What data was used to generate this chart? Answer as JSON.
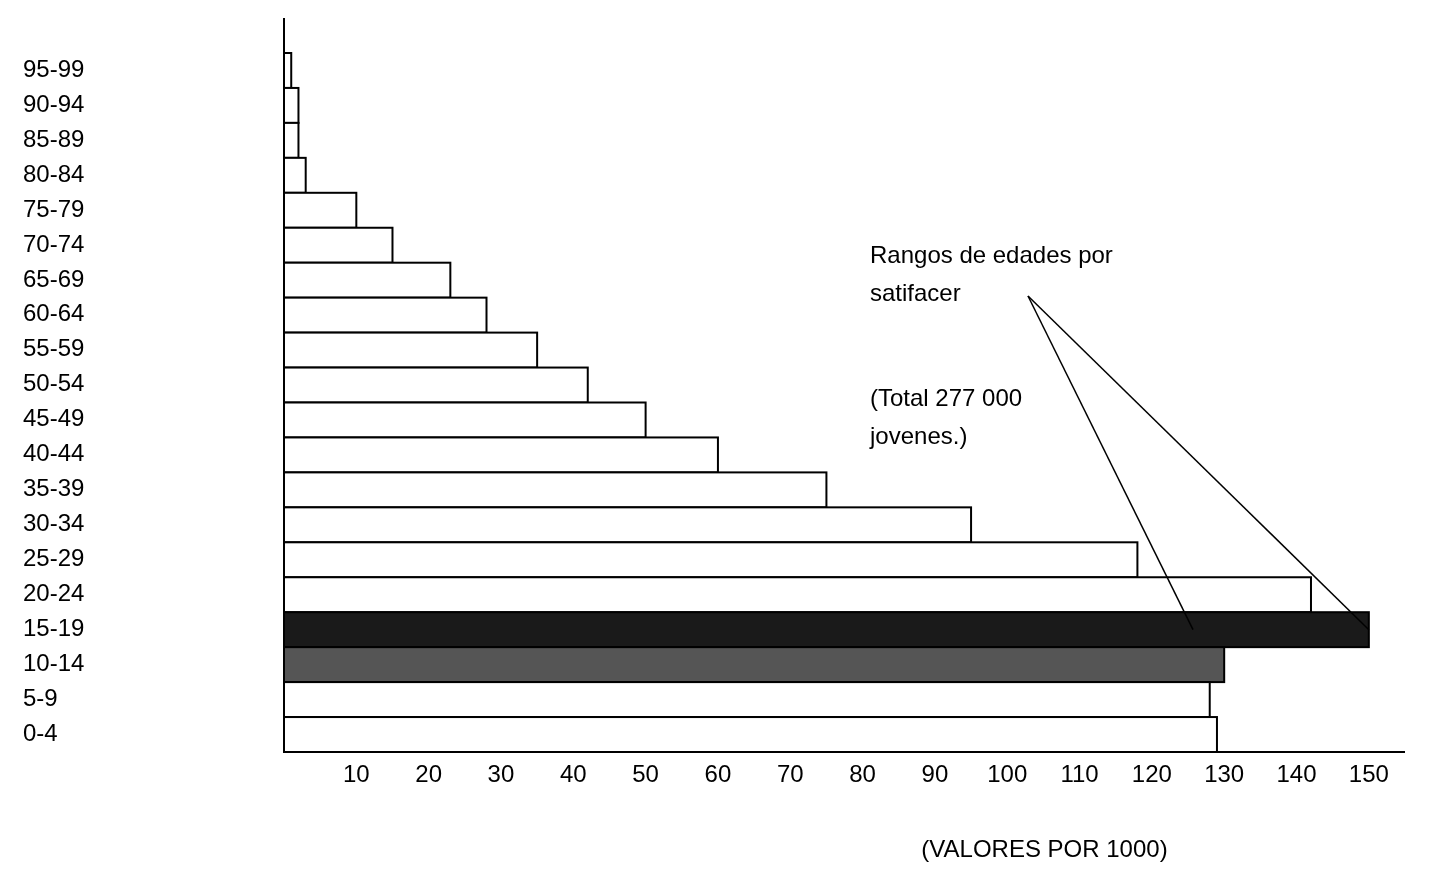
{
  "chart_data": {
    "type": "bar",
    "orientation": "horizontal",
    "xlabel": "(VALORES POR 1000)",
    "categories": [
      "95-99",
      "90-94",
      "85-89",
      "80-84",
      "75-79",
      "70-74",
      "65-69",
      "60-64",
      "55-59",
      "50-54",
      "45-49",
      "40-44",
      "35-39",
      "30-34",
      "25-29",
      "20-24",
      "15-19",
      "10-14",
      "5-9",
      "0-4"
    ],
    "values": [
      1,
      2,
      2,
      3,
      10,
      15,
      23,
      28,
      35,
      42,
      50,
      60,
      75,
      95,
      118,
      142,
      150,
      130,
      128,
      129
    ],
    "colors": [
      "#ffffff",
      "#ffffff",
      "#ffffff",
      "#ffffff",
      "#ffffff",
      "#ffffff",
      "#ffffff",
      "#ffffff",
      "#ffffff",
      "#ffffff",
      "#ffffff",
      "#ffffff",
      "#ffffff",
      "#ffffff",
      "#ffffff",
      "#ffffff",
      "#1a1a1a",
      "#555555",
      "#ffffff",
      "#ffffff"
    ],
    "xlim": [
      0,
      155
    ],
    "xticks": [
      10,
      20,
      30,
      40,
      50,
      60,
      70,
      80,
      90,
      100,
      110,
      120,
      130,
      140,
      150
    ],
    "annotations": [
      {
        "text": "Rangos de edades por satifacer",
        "x": 150,
        "y": "15-19"
      },
      "(Total 277 000 jovenes.)"
    ]
  }
}
